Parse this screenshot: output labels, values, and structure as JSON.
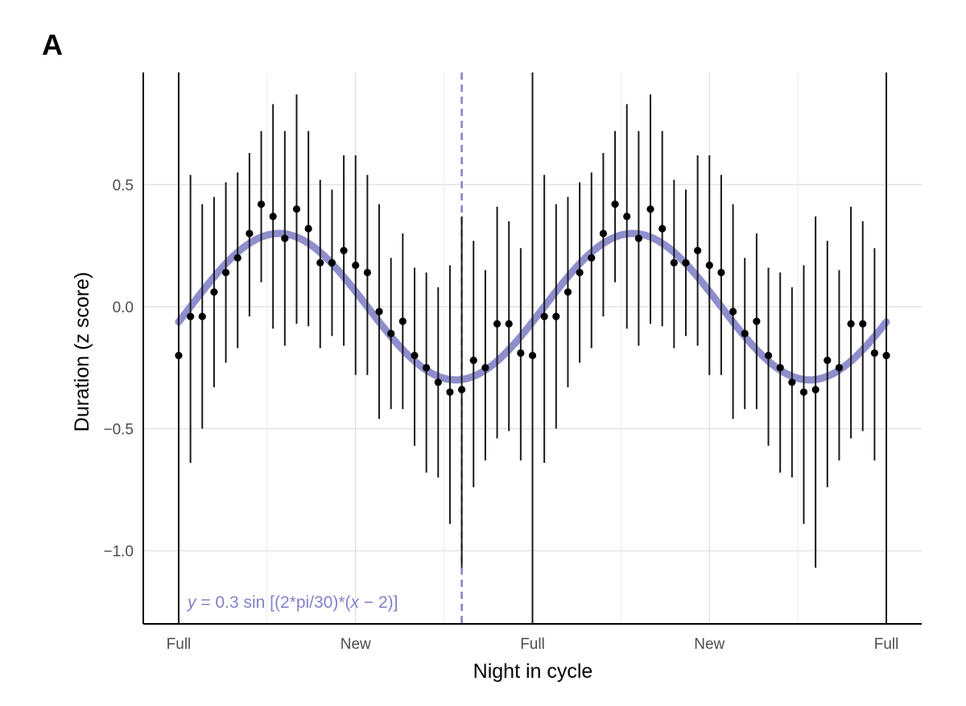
{
  "panel_label": "A",
  "chart_data": {
    "type": "scatter",
    "title": "",
    "xlabel": "Night in cycle",
    "ylabel": "Duration (z score)",
    "x_range": [
      1,
      61
    ],
    "xlim": [
      -2,
      64
    ],
    "ylim": [
      -1.3,
      0.96
    ],
    "x_ticks": [
      {
        "x": 1,
        "label": "Full"
      },
      {
        "x": 16,
        "label": "New"
      },
      {
        "x": 31,
        "label": "Full"
      },
      {
        "x": 46,
        "label": "New"
      },
      {
        "x": 61,
        "label": "Full"
      }
    ],
    "y_ticks": [
      {
        "y": 0.5,
        "label": "0.5"
      },
      {
        "y": 0.0,
        "label": "0.0"
      },
      {
        "y": -0.5,
        "label": "−0.5"
      },
      {
        "y": -1.0,
        "label": "−1.0"
      }
    ],
    "grid": true,
    "vlines_solid_x": [
      1,
      31,
      61
    ],
    "vline_dashed_x": 25,
    "fit": {
      "amplitude": 0.3,
      "period": 30,
      "phase_shift": 2,
      "color": "#8282c8"
    },
    "fit_label": {
      "italic_var": "y",
      "text": " = 0.3 sin [(2*pi/30)*(",
      "italic_var2": "x",
      "text2": " − 2)]"
    },
    "series": [
      {
        "x": [
          1,
          2,
          3,
          4,
          5,
          6,
          7,
          8,
          9,
          10,
          11,
          12,
          13,
          14,
          15,
          16,
          17,
          18,
          19,
          20,
          21,
          22,
          23,
          24,
          25,
          26,
          27,
          28,
          29,
          30,
          31,
          32,
          33,
          34,
          35,
          36,
          37,
          38,
          39,
          40,
          41,
          42,
          43,
          44,
          45,
          46,
          47,
          48,
          49,
          50,
          51,
          52,
          53,
          54,
          55,
          56,
          57,
          58,
          59,
          60,
          61
        ],
        "y": [
          -0.2,
          -0.04,
          -0.04,
          0.06,
          0.14,
          0.2,
          0.3,
          0.42,
          0.37,
          0.28,
          0.4,
          0.32,
          0.18,
          0.18,
          0.23,
          0.17,
          0.14,
          -0.02,
          -0.11,
          -0.06,
          -0.2,
          -0.25,
          -0.31,
          -0.35,
          -0.34,
          -0.22,
          -0.25,
          -0.07,
          -0.07,
          -0.19,
          -0.2,
          -0.04,
          -0.04,
          0.06,
          0.14,
          0.2,
          0.3,
          0.42,
          0.37,
          0.28,
          0.4,
          0.32,
          0.18,
          0.18,
          0.23,
          0.17,
          0.14,
          -0.02,
          -0.11,
          -0.06,
          -0.2,
          -0.25,
          -0.31,
          -0.35,
          -0.34,
          -0.22,
          -0.25,
          -0.07,
          -0.07,
          -0.19,
          -0.2
        ],
        "y_low": [
          -1.3,
          -0.64,
          -0.5,
          -0.33,
          -0.23,
          -0.17,
          -0.04,
          0.1,
          -0.09,
          -0.16,
          -0.07,
          -0.08,
          -0.17,
          -0.12,
          -0.16,
          -0.28,
          -0.28,
          -0.46,
          -0.42,
          -0.42,
          -0.57,
          -0.68,
          -0.7,
          -0.89,
          -1.07,
          -0.74,
          -0.63,
          -0.54,
          -0.51,
          -0.63,
          -1.3,
          -0.64,
          -0.5,
          -0.33,
          -0.23,
          -0.17,
          -0.04,
          0.1,
          -0.09,
          -0.16,
          -0.07,
          -0.08,
          -0.17,
          -0.12,
          -0.16,
          -0.28,
          -0.28,
          -0.46,
          -0.42,
          -0.42,
          -0.57,
          -0.68,
          -0.7,
          -0.89,
          -1.07,
          -0.74,
          -0.63,
          -0.54,
          -0.51,
          -0.63,
          -1.3
        ],
        "y_high": [
          0.96,
          0.54,
          0.42,
          0.45,
          0.51,
          0.55,
          0.63,
          0.72,
          0.83,
          0.72,
          0.87,
          0.72,
          0.52,
          0.48,
          0.62,
          0.62,
          0.54,
          0.42,
          0.2,
          0.3,
          0.16,
          0.14,
          0.08,
          0.17,
          0.37,
          0.27,
          0.15,
          0.41,
          0.35,
          0.24,
          0.96,
          0.54,
          0.42,
          0.45,
          0.51,
          0.55,
          0.63,
          0.72,
          0.83,
          0.72,
          0.87,
          0.72,
          0.52,
          0.48,
          0.62,
          0.62,
          0.54,
          0.42,
          0.2,
          0.3,
          0.16,
          0.14,
          0.08,
          0.17,
          0.37,
          0.27,
          0.15,
          0.41,
          0.35,
          0.24,
          0.96
        ]
      }
    ]
  }
}
